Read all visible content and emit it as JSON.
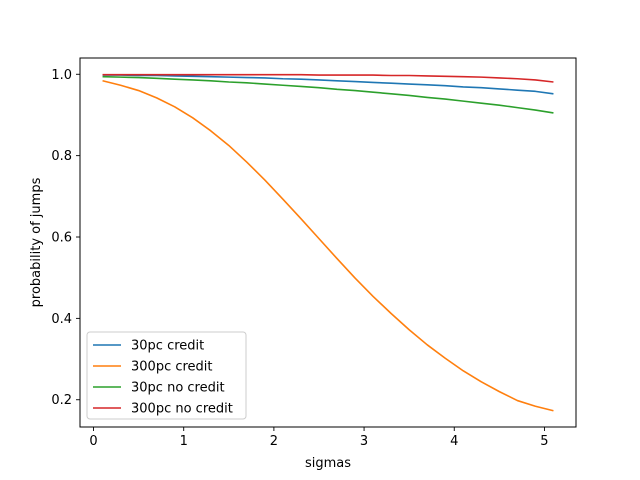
{
  "chart_data": {
    "type": "line",
    "title": "",
    "xlabel": "sigmas",
    "ylabel": "probability of jumps",
    "xlim": [
      -0.15,
      5.35
    ],
    "ylim": [
      0.133,
      1.04
    ],
    "xticks": [
      0,
      1,
      2,
      3,
      4,
      5
    ],
    "xtick_labels": [
      "0",
      "1",
      "2",
      "3",
      "4",
      "5"
    ],
    "yticks": [
      0.2,
      0.4,
      0.6,
      0.8,
      1.0
    ],
    "ytick_labels": [
      "0.2",
      "0.4",
      "0.6",
      "0.8",
      "1.0"
    ],
    "grid": false,
    "legend_position": "lower-left",
    "x": [
      0.1,
      0.3,
      0.5,
      0.7,
      0.9,
      1.1,
      1.3,
      1.5,
      1.7,
      1.9,
      2.1,
      2.3,
      2.5,
      2.7,
      2.9,
      3.1,
      3.3,
      3.5,
      3.7,
      3.9,
      4.1,
      4.3,
      4.5,
      4.7,
      4.9,
      5.1
    ],
    "series": [
      {
        "name": "30pc credit",
        "color": "#1f77b4",
        "values": [
          0.998,
          0.998,
          0.997,
          0.997,
          0.996,
          0.995,
          0.994,
          0.993,
          0.992,
          0.991,
          0.989,
          0.988,
          0.986,
          0.984,
          0.982,
          0.98,
          0.978,
          0.976,
          0.974,
          0.972,
          0.969,
          0.967,
          0.964,
          0.961,
          0.958,
          0.952
        ]
      },
      {
        "name": "300pc credit",
        "color": "#ff7f0e",
        "values": [
          0.984,
          0.973,
          0.96,
          0.942,
          0.92,
          0.893,
          0.861,
          0.825,
          0.784,
          0.74,
          0.693,
          0.645,
          0.596,
          0.547,
          0.499,
          0.454,
          0.412,
          0.372,
          0.335,
          0.302,
          0.271,
          0.244,
          0.22,
          0.198,
          0.184,
          0.173
        ]
      },
      {
        "name": "30pc no credit",
        "color": "#2ca02c",
        "values": [
          0.994,
          0.993,
          0.992,
          0.99,
          0.988,
          0.986,
          0.984,
          0.981,
          0.979,
          0.976,
          0.973,
          0.97,
          0.967,
          0.963,
          0.96,
          0.956,
          0.952,
          0.948,
          0.943,
          0.939,
          0.934,
          0.929,
          0.924,
          0.918,
          0.912,
          0.905
        ]
      },
      {
        "name": "300pc no credit",
        "color": "#d62728",
        "values": [
          0.999,
          0.999,
          0.999,
          0.999,
          0.999,
          0.999,
          0.999,
          0.999,
          0.999,
          0.999,
          0.999,
          0.999,
          0.998,
          0.998,
          0.998,
          0.998,
          0.997,
          0.997,
          0.996,
          0.995,
          0.994,
          0.993,
          0.991,
          0.989,
          0.986,
          0.981
        ]
      }
    ]
  }
}
